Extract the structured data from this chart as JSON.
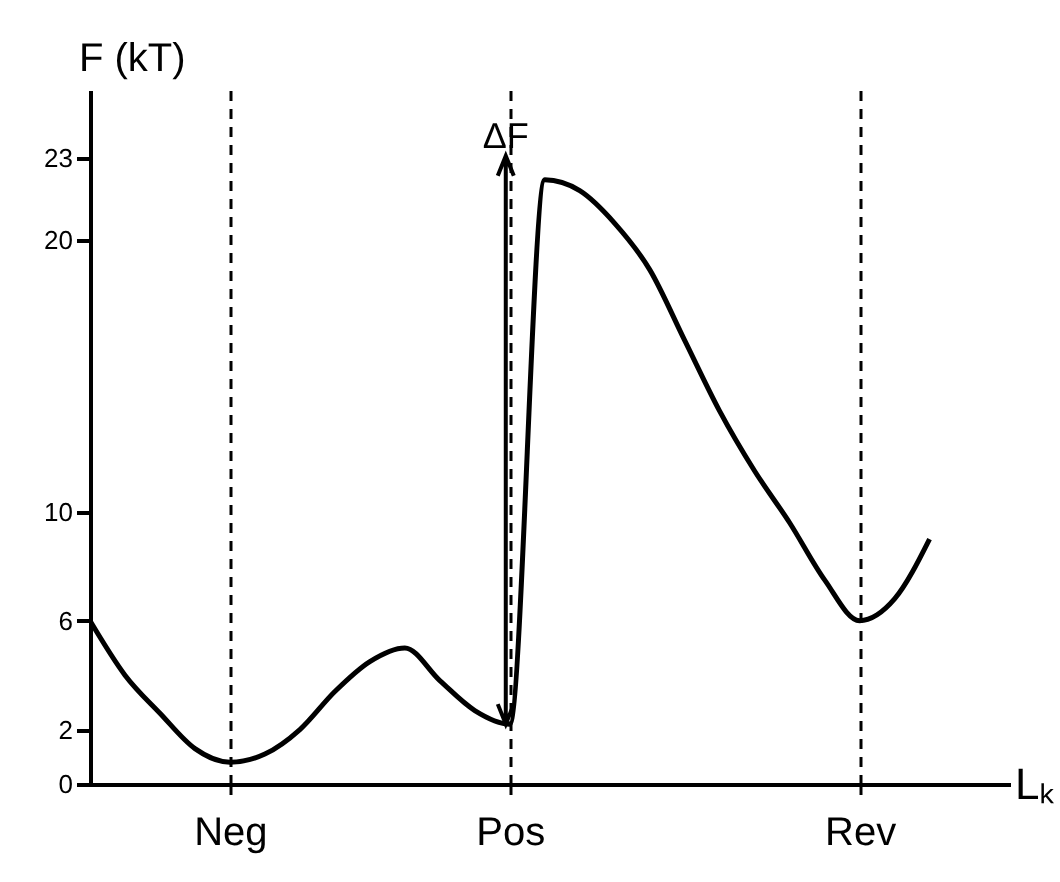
{
  "chart_data": {
    "type": "line",
    "xlabel": "Lₖ",
    "ylabel": "F (kT)",
    "categories": [
      null,
      null,
      null,
      null,
      "Neg",
      null,
      null,
      null,
      null,
      null,
      null,
      null,
      "Pos",
      null,
      null,
      null,
      null,
      null,
      null,
      null,
      null,
      null,
      "Rev",
      null,
      null
    ],
    "series": [
      {
        "color": "#000000",
        "values": [
          6,
          4.0,
          2.6,
          1.3,
          0.8,
          1.1,
          2.0,
          3.4,
          4.5,
          5.0,
          3.8,
          2.7,
          2.2,
          22.2,
          21.8,
          20.6,
          18.9,
          16.3,
          13.7,
          11.5,
          9.6,
          7.5,
          6,
          6.8,
          9.0
        ]
      }
    ],
    "ylim": [
      0,
      25.5
    ],
    "yticks": [
      0,
      2,
      6,
      10,
      20,
      23
    ],
    "annotations": [
      "ΔF"
    ],
    "grid": "x",
    "legend": false,
    "marker": "none",
    "line_style": "solid"
  }
}
